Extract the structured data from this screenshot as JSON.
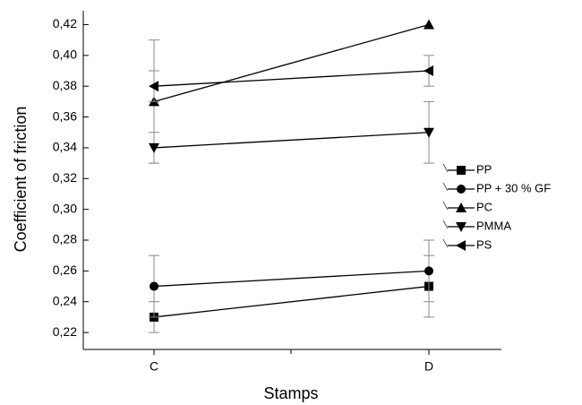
{
  "chart_data": {
    "type": "line",
    "x_label": "Stamps",
    "y_label": "Coefficient of friction",
    "categories": [
      "C",
      "D"
    ],
    "ylim": [
      0.209,
      0.429
    ],
    "yticks": [
      {
        "value": 0.22,
        "label": "0,22"
      },
      {
        "value": 0.24,
        "label": "0,24"
      },
      {
        "value": 0.26,
        "label": "0,26"
      },
      {
        "value": 0.28,
        "label": "0,28"
      },
      {
        "value": 0.3,
        "label": "0,30"
      },
      {
        "value": 0.32,
        "label": "0,32"
      },
      {
        "value": 0.34,
        "label": "0,34"
      },
      {
        "value": 0.36,
        "label": "0,36"
      },
      {
        "value": 0.38,
        "label": "0,38"
      },
      {
        "value": 0.4,
        "label": "0,40"
      },
      {
        "value": 0.42,
        "label": "0,42"
      }
    ],
    "series": [
      {
        "name": "PP",
        "marker": "square",
        "color": "#000000",
        "values": [
          0.23,
          0.25
        ],
        "errors": [
          0.01,
          0.02
        ]
      },
      {
        "name": "PP + 30 % GF",
        "marker": "circle",
        "color": "#000000",
        "values": [
          0.25,
          0.26
        ],
        "errors": [
          0.02,
          0.02
        ]
      },
      {
        "name": "PC",
        "marker": "triangle-up",
        "color": "#000000",
        "values": [
          0.37,
          0.42
        ],
        "errors": [
          0.04,
          0
        ]
      },
      {
        "name": "PMMA",
        "marker": "triangle-down",
        "color": "#000000",
        "values": [
          0.34,
          0.35
        ],
        "errors": [
          0.01,
          0.02
        ]
      },
      {
        "name": "PS",
        "marker": "triangle-left",
        "color": "#000000",
        "values": [
          0.38,
          0.39
        ],
        "errors": [
          0.01,
          0.01
        ]
      }
    ],
    "legend": "right"
  }
}
